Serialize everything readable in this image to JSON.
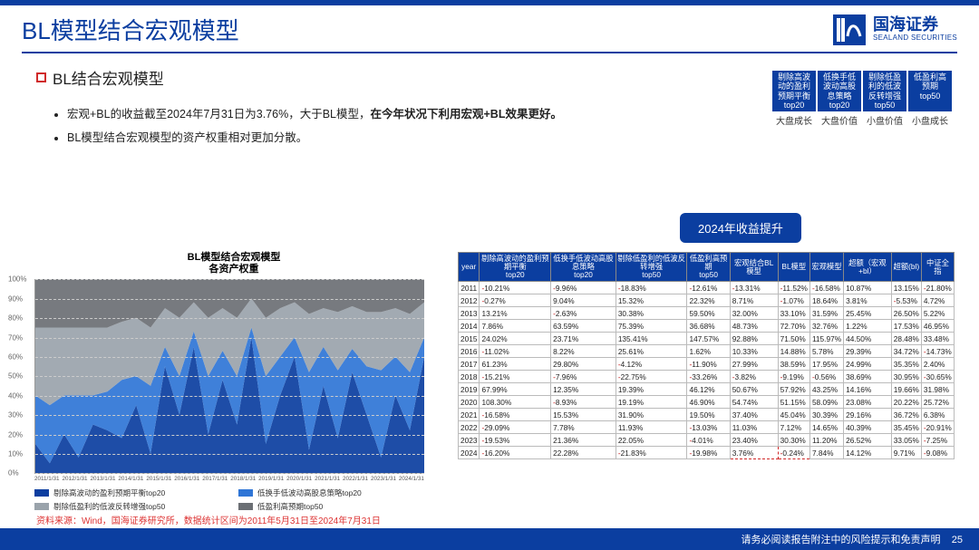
{
  "header": {
    "title": "BL模型结合宏观模型",
    "logo_cn": "国海证券",
    "logo_en": "SEALAND SECURITIES"
  },
  "section": {
    "subhead": "BL结合宏观模型",
    "bullets": [
      "宏观+BL的收益截至2024年7月31日为3.76%，大于BL模型，<b>在今年状况下利用宏观+BL效果更好。</b>",
      "BL模型结合宏观模型的资产权重相对更加分散。"
    ]
  },
  "badges": {
    "top": [
      "剔除高波动的盈利预期平衡 top20",
      "低换手低波动高股息策略 top20",
      "剔除低盈利的低波反转增强 top50",
      "低盈利高预期 top50"
    ],
    "bottom": [
      "大盘成长",
      "大盘价值",
      "小盘价值",
      "小盘成长"
    ]
  },
  "center_button": "2024年收益提升",
  "chart": {
    "title_l1": "BL模型结合宏观模型",
    "title_l2": "各资产权重",
    "y_ticks": [
      0,
      10,
      20,
      30,
      40,
      50,
      60,
      70,
      80,
      90,
      100
    ],
    "x_labels": [
      "2011/1/31",
      "2012/1/31",
      "2013/1/31",
      "2014/1/31",
      "2015/1/31",
      "2016/1/31",
      "2017/1/31",
      "2018/1/31",
      "2019/1/31",
      "2020/1/31",
      "2021/1/31",
      "2022/1/31",
      "2023/1/31",
      "2024/1/31"
    ],
    "series": [
      {
        "name": "剔除高波动的盈利预期平衡top20",
        "color": "#0b3ea0"
      },
      {
        "name": "低换手低波动高股息策略top20",
        "color": "#2f75d6"
      },
      {
        "name": "剔除低盈利的低波反转增强top50",
        "color": "#9aa3ab"
      },
      {
        "name": "低盈利高预期top50",
        "color": "#6b6f74"
      }
    ],
    "stack": [
      [
        15,
        5,
        20,
        8,
        25,
        22,
        18,
        35,
        10,
        55,
        30,
        65,
        20,
        48,
        25,
        70,
        15,
        40,
        60,
        12,
        45,
        18,
        52,
        30,
        8,
        40,
        22,
        60
      ],
      [
        25,
        30,
        20,
        32,
        15,
        20,
        30,
        15,
        35,
        10,
        20,
        8,
        30,
        15,
        25,
        5,
        35,
        20,
        10,
        40,
        20,
        35,
        12,
        25,
        45,
        20,
        30,
        10
      ],
      [
        35,
        40,
        35,
        35,
        35,
        33,
        30,
        30,
        30,
        20,
        30,
        15,
        30,
        22,
        30,
        15,
        30,
        25,
        18,
        30,
        20,
        30,
        22,
        28,
        30,
        25,
        30,
        18
      ],
      [
        25,
        25,
        25,
        25,
        25,
        25,
        22,
        20,
        25,
        15,
        20,
        12,
        20,
        15,
        20,
        10,
        20,
        15,
        12,
        18,
        15,
        17,
        14,
        17,
        17,
        15,
        18,
        12
      ]
    ],
    "background_color": "#ffffff",
    "grid_color": "#dddddd"
  },
  "table": {
    "columns": [
      "year",
      "剔除高波动的盈利预期平衡 top20",
      "低换手低波动高股息策略 top20",
      "剔除低盈利的低波反转增强 top50",
      "低盈利高预期 top50",
      "宏观结合BL模型",
      "BL模型",
      "宏观模型",
      "超额（宏观+bl）",
      "超额(bl)",
      "中证全指"
    ],
    "rows": [
      [
        "2011",
        "-10.21%",
        "-9.96%",
        "-18.83%",
        "-12.61%",
        "-13.31%",
        "-11.52%",
        "-16.58%",
        "10.87%",
        "13.15%",
        "-21.80%"
      ],
      [
        "2012",
        "-0.27%",
        "9.04%",
        "15.32%",
        "22.32%",
        "8.71%",
        "-1.07%",
        "18.64%",
        "3.81%",
        "-5.53%",
        "4.72%"
      ],
      [
        "2013",
        "13.21%",
        "-2.63%",
        "30.38%",
        "59.50%",
        "32.00%",
        "33.10%",
        "31.59%",
        "25.45%",
        "26.50%",
        "5.22%"
      ],
      [
        "2014",
        "7.86%",
        "63.59%",
        "75.39%",
        "36.68%",
        "48.73%",
        "72.70%",
        "32.76%",
        "1.22%",
        "17.53%",
        "46.95%"
      ],
      [
        "2015",
        "24.02%",
        "23.71%",
        "135.41%",
        "147.57%",
        "92.88%",
        "71.50%",
        "115.97%",
        "44.50%",
        "28.48%",
        "33.48%"
      ],
      [
        "2016",
        "-11.02%",
        "8.22%",
        "25.61%",
        "1.62%",
        "10.33%",
        "14.88%",
        "5.78%",
        "29.39%",
        "34.72%",
        "-14.73%"
      ],
      [
        "2017",
        "61.23%",
        "29.80%",
        "-4.12%",
        "-11.90%",
        "27.99%",
        "38.59%",
        "17.95%",
        "24.99%",
        "35.35%",
        "2.40%"
      ],
      [
        "2018",
        "-15.21%",
        "-7.96%",
        "-22.75%",
        "-33.26%",
        "-3.82%",
        "-9.19%",
        "-0.56%",
        "38.69%",
        "30.95%",
        "-30.65%"
      ],
      [
        "2019",
        "67.99%",
        "12.35%",
        "19.39%",
        "46.12%",
        "50.67%",
        "57.92%",
        "43.25%",
        "14.16%",
        "19.66%",
        "31.98%"
      ],
      [
        "2020",
        "108.30%",
        "-8.93%",
        "19.19%",
        "46.90%",
        "54.74%",
        "51.15%",
        "58.09%",
        "23.08%",
        "20.22%",
        "25.72%"
      ],
      [
        "2021",
        "-16.58%",
        "15.53%",
        "31.90%",
        "19.50%",
        "37.40%",
        "45.04%",
        "30.39%",
        "29.16%",
        "36.72%",
        "6.38%"
      ],
      [
        "2022",
        "-29.09%",
        "7.78%",
        "11.93%",
        "-13.03%",
        "11.03%",
        "7.12%",
        "14.65%",
        "40.39%",
        "35.45%",
        "-20.91%"
      ],
      [
        "2023",
        "-19.53%",
        "21.36%",
        "22.05%",
        "-4.01%",
        "23.40%",
        "30.30%",
        "11.20%",
        "26.52%",
        "33.05%",
        "-7.25%"
      ],
      [
        "2024",
        "-16.20%",
        "22.28%",
        "-21.83%",
        "-19.98%",
        "3.76%",
        "-0.24%",
        "7.84%",
        "14.12%",
        "9.71%",
        "-9.08%"
      ]
    ],
    "dash_cells": [
      [
        13,
        5
      ],
      [
        13,
        6
      ]
    ],
    "neg_prefix": "-",
    "header_bg": "#0b3ea0",
    "header_fg": "#ffffff"
  },
  "source": "资料来源：Wind，国海证券研究所，数据统计区间为2011年5月31日至2024年7月31日",
  "footer": {
    "left": "",
    "right": "请务必阅读报告附注中的风险提示和免责声明",
    "page": "25"
  }
}
